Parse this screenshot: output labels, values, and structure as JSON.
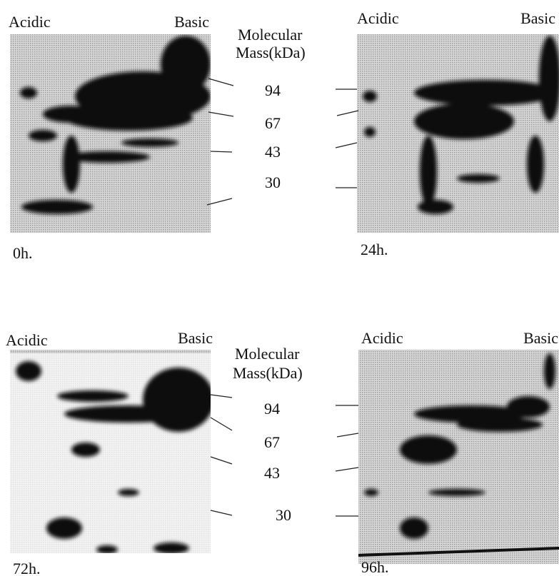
{
  "panels": [
    {
      "left_label": "Acidic",
      "right_label": "Basic",
      "time": "0h."
    },
    {
      "left_label": "Acidic",
      "right_label": "Basic",
      "time": "24h."
    },
    {
      "left_label": "Acidic",
      "right_label": "Basic",
      "time": "72h."
    },
    {
      "left_label": "Acidic",
      "right_label": "Basic",
      "time": "96h."
    }
  ],
  "markers": [
    {
      "title": [
        "Molecular",
        "Mass(kDa)"
      ],
      "values": [
        "94",
        "67",
        "43",
        "30"
      ]
    },
    {
      "title": [
        "Molecular",
        "Mass(kDa)"
      ],
      "values": [
        "94",
        "67",
        "43",
        "30"
      ]
    }
  ]
}
